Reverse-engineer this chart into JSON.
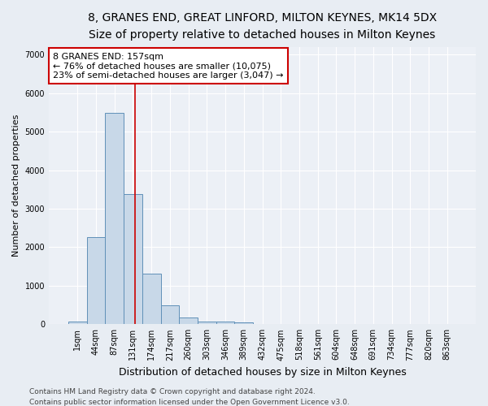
{
  "title": "8, GRANES END, GREAT LINFORD, MILTON KEYNES, MK14 5DX",
  "subtitle": "Size of property relative to detached houses in Milton Keynes",
  "xlabel": "Distribution of detached houses by size in Milton Keynes",
  "ylabel": "Number of detached properties",
  "footer_line1": "Contains HM Land Registry data © Crown copyright and database right 2024.",
  "footer_line2": "Contains public sector information licensed under the Open Government Licence v3.0.",
  "bar_labels": [
    "1sqm",
    "44sqm",
    "87sqm",
    "131sqm",
    "174sqm",
    "217sqm",
    "260sqm",
    "303sqm",
    "346sqm",
    "389sqm",
    "432sqm",
    "475sqm",
    "518sqm",
    "561sqm",
    "604sqm",
    "648sqm",
    "691sqm",
    "734sqm",
    "777sqm",
    "820sqm",
    "863sqm"
  ],
  "bar_values": [
    70,
    2270,
    5480,
    3370,
    1320,
    500,
    165,
    80,
    60,
    55,
    0,
    0,
    0,
    0,
    0,
    0,
    0,
    0,
    0,
    0,
    0
  ],
  "bar_color": "#c8d8e8",
  "bar_edge_color": "#6090b8",
  "bar_edge_width": 0.7,
  "property_line_color": "#cc0000",
  "annotation_text": "8 GRANES END: 157sqm\n← 76% of detached houses are smaller (10,075)\n23% of semi-detached houses are larger (3,047) →",
  "annotation_box_color": "#ffffff",
  "annotation_box_edge_color": "#cc0000",
  "ylim": [
    0,
    7200
  ],
  "yticks": [
    0,
    1000,
    2000,
    3000,
    4000,
    5000,
    6000,
    7000
  ],
  "bg_color": "#e8edf3",
  "plot_bg_color": "#ecf0f6",
  "grid_color": "#ffffff",
  "title_fontsize": 10,
  "subtitle_fontsize": 9,
  "xlabel_fontsize": 9,
  "ylabel_fontsize": 8,
  "tick_fontsize": 7,
  "annotation_fontsize": 8,
  "footer_fontsize": 6.5
}
